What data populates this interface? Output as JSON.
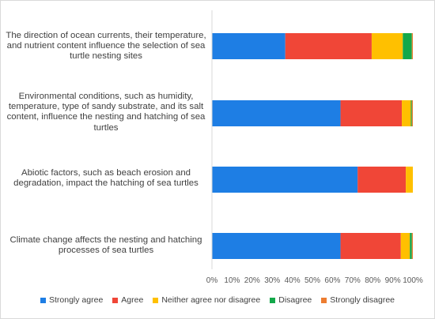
{
  "chart_data": {
    "type": "bar",
    "orientation": "horizontal",
    "stacked": "percent",
    "categories": [
      "The direction of ocean currents, their temperature, and nutrient content influence the selection of sea turtle nesting sites",
      "Environmental conditions, such as humidity, temperature, type of sandy substrate, and its salt content, influence the nesting and hatching of sea turtles",
      "Abiotic factors, such as beach erosion and degradation, impact the hatching of sea turtles",
      "Climate change affects the nesting and hatching processes of sea turtles"
    ],
    "series": [
      {
        "name": "Strongly agree",
        "color": "#1e7ee4",
        "values": [
          36.5,
          64.0,
          72.5,
          64.0
        ]
      },
      {
        "name": "Agree",
        "color": "#f04637",
        "values": [
          43.0,
          30.5,
          24.0,
          30.0
        ]
      },
      {
        "name": "Neither agree nor disagree",
        "color": "#ffc000",
        "values": [
          15.5,
          4.5,
          3.5,
          4.5
        ]
      },
      {
        "name": "Disagree",
        "color": "#13a84a",
        "values": [
          4.5,
          0.5,
          0.0,
          1.0
        ]
      },
      {
        "name": "Strongly disagree",
        "color": "#ed7d31",
        "values": [
          0.5,
          0.5,
          0.0,
          0.5
        ]
      }
    ],
    "x_ticks": [
      "0%",
      "10%",
      "20%",
      "30%",
      "40%",
      "50%",
      "60%",
      "70%",
      "80%",
      "90%",
      "100%"
    ],
    "xlim": [
      0,
      100
    ],
    "title": "",
    "xlabel": "",
    "ylabel": "",
    "grid": false,
    "legend_position": "bottom"
  }
}
